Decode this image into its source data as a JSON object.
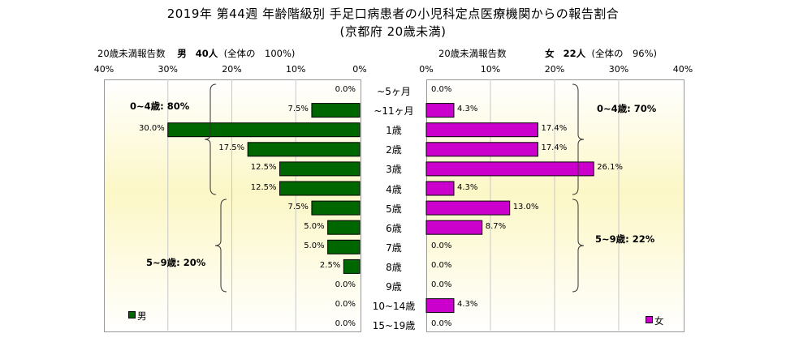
{
  "title_line1": "2019年 第44週 年齢階級別 手足口病患者の小児科定点医療機関からの報告割合",
  "title_line2": "(京都府 20歳未満)",
  "left_header": {
    "count_label": "20歳未満報告数",
    "sex": "男",
    "count": "40人",
    "total": "(全体の　100%)"
  },
  "right_header": {
    "count_label": "20歳未満報告数",
    "sex": "女",
    "count": "22人",
    "total": "(全体の　96%)"
  },
  "chart_data": {
    "type": "bar",
    "orientation": "horizontal-population-pyramid",
    "categories": [
      "~5ヶ月",
      "~11ヶ月",
      "1歳",
      "2歳",
      "3歳",
      "4歳",
      "5歳",
      "6歳",
      "7歳",
      "8歳",
      "9歳",
      "10~14歳",
      "15~19歳"
    ],
    "series": [
      {
        "name": "男",
        "color": "#006600",
        "values": [
          0.0,
          7.5,
          30.0,
          17.5,
          12.5,
          12.5,
          7.5,
          5.0,
          5.0,
          2.5,
          0.0,
          0.0,
          0.0
        ]
      },
      {
        "name": "女",
        "color": "#cc00cc",
        "values": [
          0.0,
          4.3,
          17.4,
          17.4,
          26.1,
          4.3,
          13.0,
          8.7,
          0.0,
          0.0,
          0.0,
          4.3,
          0.0
        ]
      }
    ],
    "value_labels_left": [
      "0.0%",
      "7.5%",
      "30.0%",
      "17.5%",
      "12.5%",
      "12.5%",
      "7.5%",
      "5.0%",
      "5.0%",
      "2.5%",
      "0.0%",
      "0.0%",
      "0.0%"
    ],
    "value_labels_right": [
      "0.0%",
      "4.3%",
      "17.4%",
      "17.4%",
      "26.1%",
      "4.3%",
      "13.0%",
      "8.7%",
      "0.0%",
      "0.0%",
      "0.0%",
      "4.3%",
      "0.0%"
    ],
    "left_axis_ticks": [
      "40%",
      "30%",
      "20%",
      "10%",
      "0%"
    ],
    "right_axis_ticks": [
      "0%",
      "10%",
      "20%",
      "30%",
      "40%"
    ],
    "xlim": [
      0,
      40
    ],
    "grid": true,
    "group_annotations": {
      "male_0_4": "0~4歳: 80%",
      "male_5_9": "5~9歳: 20%",
      "female_0_4": "0~4歳: 70%",
      "female_5_9": "5~9歳: 22%"
    },
    "legend": {
      "male": "男",
      "female": "女"
    }
  }
}
